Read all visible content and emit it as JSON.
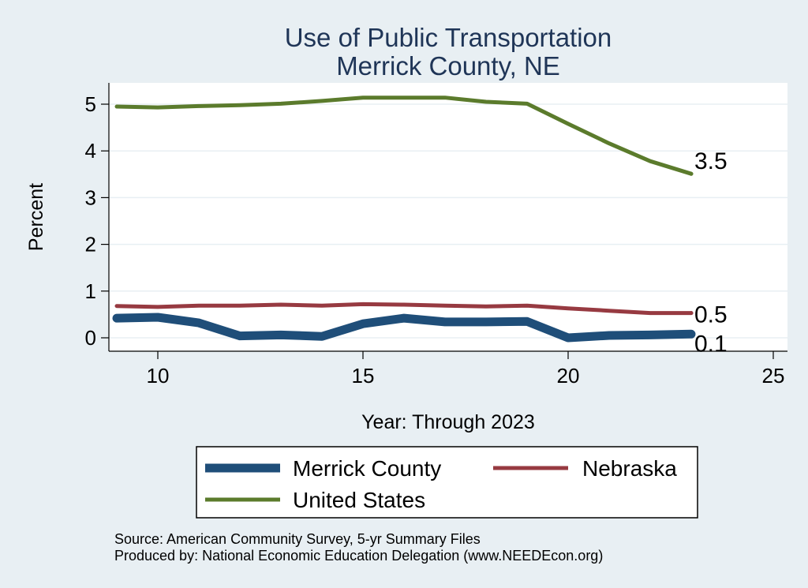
{
  "chart_data": {
    "type": "line",
    "title": [
      "Use of Public Transportation",
      "Merrick County, NE"
    ],
    "xlabel": "Year: Through 2023",
    "ylabel": "Percent",
    "xlim": [
      9,
      25
    ],
    "ylim": [
      0,
      5
    ],
    "xticks": [
      10,
      15,
      20,
      25
    ],
    "yticks": [
      0,
      1,
      2,
      3,
      4,
      5
    ],
    "grid": true,
    "legend_position": "bottom",
    "x": [
      9,
      10,
      11,
      12,
      13,
      14,
      15,
      16,
      17,
      18,
      19,
      20,
      21,
      22,
      23
    ],
    "series": [
      {
        "name": "Merrick County",
        "color": "#1f4e79",
        "values": [
          0.42,
          0.44,
          0.32,
          0.04,
          0.06,
          0.03,
          0.3,
          0.42,
          0.34,
          0.34,
          0.35,
          0.0,
          0.05,
          0.06,
          0.08
        ],
        "end_label": "0.1"
      },
      {
        "name": "Nebraska",
        "color": "#973a41",
        "values": [
          0.68,
          0.66,
          0.69,
          0.69,
          0.71,
          0.69,
          0.72,
          0.71,
          0.69,
          0.67,
          0.69,
          0.63,
          0.58,
          0.53,
          0.53
        ],
        "end_label": "0.5"
      },
      {
        "name": "United States",
        "color": "#5b7b2c",
        "values": [
          4.95,
          4.93,
          4.96,
          4.98,
          5.01,
          5.07,
          5.14,
          5.14,
          5.14,
          5.05,
          5.01,
          4.58,
          4.16,
          3.78,
          3.51
        ],
        "end_label": "3.5"
      }
    ],
    "notes": [
      "Source: American Community Survey, 5-yr Summary Files",
      "Produced by: National Economic Education Delegation (www.NEEDEcon.org)"
    ]
  }
}
